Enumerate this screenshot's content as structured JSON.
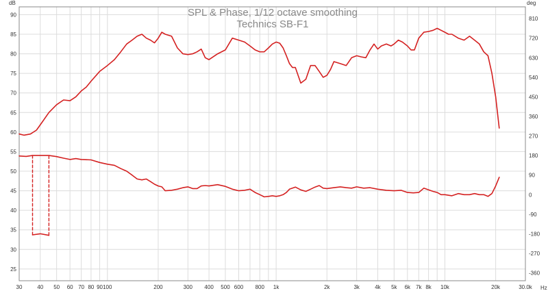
{
  "chart_data": {
    "type": "line",
    "title": "SPL & Phase, 1/12 octave smoothing",
    "subtitle": "Technics SB-F1",
    "y_left_unit": "dB",
    "y_right_unit": "deg",
    "x_unit": "Hz",
    "x_scale": "log",
    "xlim": [
      30,
      30000
    ],
    "ylim_left": [
      22,
      92
    ],
    "ylim_right": [
      -396,
      864
    ],
    "grid": true,
    "line_color": "#d42020",
    "x_ticks": [
      {
        "v": 30,
        "label": "30"
      },
      {
        "v": 40,
        "label": "40"
      },
      {
        "v": 50,
        "label": "50"
      },
      {
        "v": 60,
        "label": "60"
      },
      {
        "v": 70,
        "label": "70"
      },
      {
        "v": 80,
        "label": "80"
      },
      {
        "v": 90,
        "label": "90"
      },
      {
        "v": 100,
        "label": "100"
      },
      {
        "v": 200,
        "label": "200"
      },
      {
        "v": 300,
        "label": "300"
      },
      {
        "v": 400,
        "label": "400"
      },
      {
        "v": 500,
        "label": "500"
      },
      {
        "v": 600,
        "label": "600"
      },
      {
        "v": 800,
        "label": "800"
      },
      {
        "v": 1000,
        "label": "1k"
      },
      {
        "v": 2000,
        "label": "2k"
      },
      {
        "v": 3000,
        "label": "3k"
      },
      {
        "v": 4000,
        "label": "4k"
      },
      {
        "v": 5000,
        "label": "5k"
      },
      {
        "v": 6000,
        "label": "6k"
      },
      {
        "v": 7000,
        "label": "7k"
      },
      {
        "v": 8000,
        "label": "8k"
      },
      {
        "v": 10000,
        "label": "10k"
      },
      {
        "v": 20000,
        "label": "20k"
      },
      {
        "v": 30000,
        "label": "30.0k"
      }
    ],
    "x_minor_gridlines": [
      700,
      900,
      9000
    ],
    "y_left_ticks": [
      {
        "v": 25,
        "label": "25"
      },
      {
        "v": 30,
        "label": "30"
      },
      {
        "v": 35,
        "label": "35"
      },
      {
        "v": 40,
        "label": "40"
      },
      {
        "v": 45,
        "label": "45"
      },
      {
        "v": 50,
        "label": "50"
      },
      {
        "v": 55,
        "label": "55"
      },
      {
        "v": 60,
        "label": "60"
      },
      {
        "v": 65,
        "label": "65"
      },
      {
        "v": 70,
        "label": "70"
      },
      {
        "v": 75,
        "label": "75"
      },
      {
        "v": 80,
        "label": "80"
      },
      {
        "v": 85,
        "label": "85"
      },
      {
        "v": 90,
        "label": "90"
      }
    ],
    "y_right_ticks": [
      {
        "v": -360,
        "label": "-360"
      },
      {
        "v": -270,
        "label": "-270"
      },
      {
        "v": -180,
        "label": "-180"
      },
      {
        "v": -90,
        "label": "-90"
      },
      {
        "v": 0,
        "label": "0"
      },
      {
        "v": 90,
        "label": "90"
      },
      {
        "v": 180,
        "label": "180"
      },
      {
        "v": 270,
        "label": "270"
      },
      {
        "v": 360,
        "label": "360"
      },
      {
        "v": 450,
        "label": "450"
      },
      {
        "v": 540,
        "label": "540"
      },
      {
        "v": 630,
        "label": "630"
      },
      {
        "v": 720,
        "label": "720"
      },
      {
        "v": 810,
        "label": "810"
      }
    ],
    "series": [
      {
        "key": "spl",
        "axis": "left",
        "style": "solid",
        "x": [
          30,
          32,
          35,
          38,
          41,
          45,
          50,
          55,
          60,
          65,
          70,
          75,
          80,
          90,
          100,
          110,
          120,
          130,
          140,
          150,
          160,
          170,
          180,
          190,
          200,
          210,
          220,
          240,
          260,
          280,
          300,
          320,
          340,
          360,
          380,
          400,
          450,
          500,
          550,
          600,
          650,
          700,
          750,
          800,
          850,
          900,
          950,
          1000,
          1050,
          1100,
          1150,
          1200,
          1250,
          1300,
          1400,
          1500,
          1600,
          1700,
          1800,
          1900,
          2000,
          2100,
          2200,
          2400,
          2600,
          2800,
          3000,
          3200,
          3400,
          3600,
          3800,
          4000,
          4200,
          4500,
          4800,
          5000,
          5300,
          5600,
          6000,
          6300,
          6600,
          7000,
          7500,
          8000,
          8500,
          9000,
          9500,
          10000,
          10500,
          11000,
          12000,
          13000,
          14000,
          15000,
          16000,
          17000,
          18000,
          19000,
          20000,
          21000
        ],
        "y": [
          59.5,
          59.2,
          59.5,
          60.5,
          62.5,
          65.0,
          67.0,
          68.2,
          68.0,
          69.0,
          70.5,
          71.5,
          73.0,
          75.5,
          77.0,
          78.5,
          80.5,
          82.5,
          83.5,
          84.5,
          85.0,
          84.0,
          83.5,
          82.8,
          84.0,
          85.5,
          85.0,
          84.5,
          81.5,
          80.0,
          79.8,
          80.0,
          80.5,
          81.2,
          79.0,
          78.5,
          80.0,
          81.0,
          84.0,
          83.5,
          83.0,
          82.0,
          81.0,
          80.5,
          80.5,
          81.5,
          82.5,
          83.0,
          82.7,
          81.5,
          79.5,
          77.5,
          76.5,
          76.5,
          72.5,
          73.5,
          77.0,
          77.0,
          75.5,
          74.0,
          74.5,
          76.0,
          78.0,
          77.5,
          77.0,
          79.0,
          79.5,
          79.2,
          79.0,
          81.0,
          82.5,
          81.2,
          82.0,
          82.5,
          82.0,
          82.5,
          83.5,
          83.0,
          82.0,
          81.0,
          81.0,
          84.0,
          85.5,
          85.7,
          86.0,
          86.5,
          86.0,
          85.5,
          85.0,
          85.0,
          84.0,
          83.5,
          84.5,
          83.5,
          82.5,
          80.5,
          79.5,
          75.0,
          69.0,
          61.0
        ]
      },
      {
        "key": "phase",
        "axis": "right",
        "style": "solid",
        "x": [
          30,
          33,
          36,
          45,
          50,
          55,
          60,
          65,
          70,
          80,
          90,
          100,
          110,
          120,
          130,
          140,
          150,
          160,
          170,
          180,
          190,
          200,
          210,
          220,
          240,
          260,
          280,
          300,
          320,
          340,
          360,
          380,
          400,
          450,
          500,
          550,
          600,
          650,
          700,
          750,
          800,
          850,
          900,
          950,
          1000,
          1050,
          1100,
          1150,
          1200,
          1300,
          1400,
          1500,
          1600,
          1700,
          1800,
          1900,
          2000,
          2200,
          2400,
          2600,
          2800,
          3000,
          3300,
          3600,
          4000,
          4500,
          5000,
          5500,
          6000,
          6500,
          7000,
          7500,
          8000,
          8500,
          9000,
          9500,
          10000,
          11000,
          12000,
          13000,
          14000,
          15000,
          16000,
          17000,
          18000,
          19000,
          20000,
          21000
        ],
        "y": [
          178,
          176,
          180,
          180,
          175,
          168,
          162,
          166,
          162,
          160,
          148,
          140,
          135,
          120,
          108,
          90,
          72,
          68,
          72,
          60,
          48,
          40,
          36,
          18,
          20,
          25,
          32,
          36,
          28,
          28,
          40,
          42,
          40,
          46,
          38,
          25,
          18,
          20,
          25,
          10,
          0,
          -10,
          -8,
          -5,
          -8,
          -5,
          0,
          10,
          25,
          35,
          22,
          15,
          25,
          35,
          42,
          30,
          28,
          32,
          36,
          32,
          30,
          36,
          30,
          32,
          25,
          20,
          18,
          20,
          10,
          8,
          10,
          30,
          22,
          15,
          10,
          0,
          0,
          -5,
          5,
          0,
          0,
          5,
          0,
          0,
          -8,
          5,
          40,
          80
        ]
      },
      {
        "key": "phase-low",
        "axis": "right",
        "style": "solid",
        "x": [
          36,
          40,
          45
        ],
        "y": [
          -185,
          -180,
          -187
        ]
      },
      {
        "key": "phase-wrap-1",
        "axis": "right",
        "style": "dashed",
        "x": [
          36,
          36
        ],
        "y": [
          180,
          -185
        ]
      },
      {
        "key": "phase-wrap-2",
        "axis": "right",
        "style": "dashed",
        "x": [
          45,
          45
        ],
        "y": [
          -187,
          180
        ]
      }
    ]
  }
}
